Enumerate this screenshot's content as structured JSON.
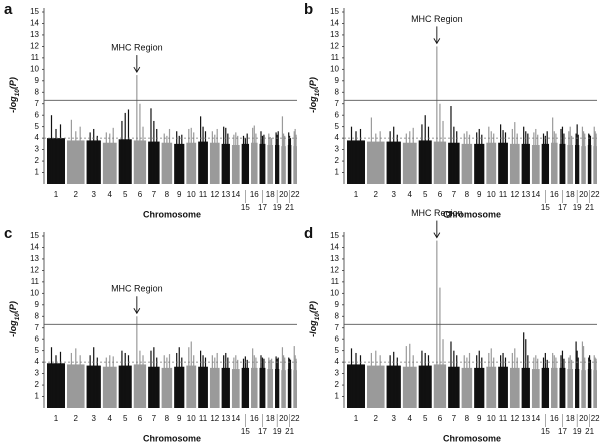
{
  "chart_data": [
    {
      "type": "manhattan",
      "label": "a",
      "x_label": "Chromosome",
      "y_label": [
        "-log",
        "10",
        "(P)"
      ],
      "categories": [
        "1",
        "2",
        "3",
        "4",
        "5",
        "6",
        "7",
        "8",
        "9",
        "10",
        "11",
        "12",
        "13",
        "14",
        "15",
        "16",
        "17",
        "18",
        "19",
        "20",
        "21",
        "22"
      ],
      "colors": [
        "#111111",
        "#9a9a9a"
      ],
      "ylim": [
        0,
        15
      ],
      "yticks": [
        1,
        2,
        3,
        4,
        5,
        6,
        7,
        8,
        9,
        10,
        11,
        12,
        13,
        14,
        15
      ],
      "genome_wide_line": 7.3,
      "suggestive_line": 4,
      "bands": [
        4.0,
        3.8,
        3.8,
        3.6,
        3.9,
        3.8,
        3.7,
        3.6,
        3.5,
        3.6,
        3.7,
        3.6,
        3.5,
        3.4,
        3.5,
        3.6,
        3.5,
        3.4,
        3.4,
        3.3,
        3.4,
        3.3
      ],
      "peaks": [
        [
          6.0,
          4.8,
          5.2
        ],
        [
          5.6,
          4.6,
          5.0
        ],
        [
          4.5,
          4.8,
          4.2
        ],
        [
          4.5,
          4.4,
          4.9
        ],
        [
          5.5,
          6.2,
          6.5
        ],
        [
          9.5,
          7.0,
          5.0
        ],
        [
          6.6,
          5.5,
          4.8
        ],
        [
          4.4,
          4.2,
          4.8
        ],
        [
          4.6,
          4.2,
          4.3
        ],
        [
          4.8,
          4.9,
          4.5
        ],
        [
          5.9,
          5.0,
          4.6
        ],
        [
          4.6,
          4.3,
          4.8
        ],
        [
          5.0,
          4.9,
          4.4
        ],
        [
          4.3,
          4.5,
          4.2
        ],
        [
          4.2,
          4.0,
          4.4
        ],
        [
          4.9,
          5.1,
          4.4
        ],
        [
          4.6,
          4.2,
          4.3
        ],
        [
          4.4,
          4.1,
          4.0
        ],
        [
          4.5,
          4.3,
          4.6
        ],
        [
          5.9,
          4.4,
          4.2
        ],
        [
          4.5,
          4.2,
          4.0
        ],
        [
          4.6,
          4.8,
          4.3
        ]
      ],
      "annotation": {
        "text": "MHC Region",
        "category": "6"
      }
    },
    {
      "type": "manhattan",
      "label": "b",
      "x_label": "Chromosome",
      "y_label": [
        "-log",
        "10",
        "(P)"
      ],
      "categories": [
        "1",
        "2",
        "3",
        "4",
        "5",
        "6",
        "7",
        "8",
        "9",
        "10",
        "11",
        "12",
        "13",
        "14",
        "15",
        "16",
        "17",
        "18",
        "19",
        "20",
        "21",
        "22"
      ],
      "colors": [
        "#111111",
        "#9a9a9a"
      ],
      "ylim": [
        0,
        15
      ],
      "yticks": [
        1,
        2,
        3,
        4,
        5,
        6,
        7,
        8,
        9,
        10,
        11,
        12,
        13,
        14,
        15
      ],
      "genome_wide_line": 7.3,
      "suggestive_line": 4,
      "bands": [
        3.8,
        3.7,
        3.7,
        3.6,
        3.8,
        3.7,
        3.6,
        3.5,
        3.5,
        3.6,
        3.6,
        3.5,
        3.5,
        3.4,
        3.5,
        3.6,
        3.5,
        3.4,
        3.4,
        3.3,
        3.4,
        3.3
      ],
      "peaks": [
        [
          5.0,
          4.6,
          4.8
        ],
        [
          5.8,
          4.4,
          4.6
        ],
        [
          4.6,
          5.0,
          4.3
        ],
        [
          4.4,
          4.6,
          4.9
        ],
        [
          5.2,
          6.0,
          5.0
        ],
        [
          12.0,
          7.0,
          5.5
        ],
        [
          6.8,
          5.0,
          4.6
        ],
        [
          4.4,
          4.6,
          4.3
        ],
        [
          4.5,
          4.8,
          4.3
        ],
        [
          5.0,
          4.6,
          4.4
        ],
        [
          5.2,
          4.7,
          4.5
        ],
        [
          4.8,
          5.4,
          4.4
        ],
        [
          5.0,
          4.6,
          4.4
        ],
        [
          4.5,
          4.8,
          4.3
        ],
        [
          4.4,
          4.2,
          4.6
        ],
        [
          5.8,
          4.6,
          4.4
        ],
        [
          4.8,
          5.0,
          4.4
        ],
        [
          4.6,
          5.0,
          4.2
        ],
        [
          4.4,
          5.2,
          4.3
        ],
        [
          5.0,
          4.6,
          4.4
        ],
        [
          4.4,
          4.3,
          4.2
        ],
        [
          5.0,
          4.6,
          4.4
        ]
      ],
      "annotation": {
        "text": "MHC Region",
        "category": "6"
      }
    },
    {
      "type": "manhattan",
      "label": "c",
      "x_label": "Chromosome",
      "y_label": [
        "-log",
        "10",
        "(P)"
      ],
      "categories": [
        "1",
        "2",
        "3",
        "4",
        "5",
        "6",
        "7",
        "8",
        "9",
        "10",
        "11",
        "12",
        "13",
        "14",
        "15",
        "16",
        "17",
        "18",
        "19",
        "20",
        "21",
        "22"
      ],
      "colors": [
        "#111111",
        "#9a9a9a"
      ],
      "ylim": [
        0,
        15
      ],
      "yticks": [
        1,
        2,
        3,
        4,
        5,
        6,
        7,
        8,
        9,
        10,
        11,
        12,
        13,
        14,
        15
      ],
      "genome_wide_line": 7.3,
      "suggestive_line": 4,
      "bands": [
        3.9,
        3.8,
        3.7,
        3.6,
        3.7,
        3.8,
        3.6,
        3.5,
        3.6,
        3.7,
        3.6,
        3.5,
        3.5,
        3.4,
        3.5,
        3.5,
        3.5,
        3.4,
        3.4,
        3.3,
        3.4,
        3.3
      ],
      "peaks": [
        [
          5.3,
          4.6,
          4.9
        ],
        [
          4.8,
          5.2,
          4.6
        ],
        [
          4.6,
          5.3,
          4.4
        ],
        [
          4.4,
          4.6,
          4.5
        ],
        [
          5.0,
          4.8,
          4.6
        ],
        [
          8.0,
          5.0,
          4.6
        ],
        [
          5.0,
          5.3,
          4.4
        ],
        [
          4.6,
          4.4,
          4.7
        ],
        [
          4.8,
          5.3,
          4.4
        ],
        [
          5.3,
          5.8,
          4.6
        ],
        [
          5.0,
          4.6,
          4.4
        ],
        [
          4.6,
          4.4,
          4.8
        ],
        [
          4.6,
          4.8,
          4.4
        ],
        [
          4.4,
          4.6,
          4.2
        ],
        [
          4.3,
          4.5,
          4.2
        ],
        [
          5.2,
          4.6,
          4.4
        ],
        [
          4.6,
          4.4,
          4.3
        ],
        [
          4.4,
          4.2,
          4.3
        ],
        [
          4.5,
          4.3,
          4.4
        ],
        [
          5.3,
          4.6,
          4.4
        ],
        [
          4.4,
          4.3,
          4.2
        ],
        [
          5.4,
          4.6,
          4.3
        ]
      ],
      "annotation": {
        "text": "MHC Region",
        "category": "6"
      }
    },
    {
      "type": "manhattan",
      "label": "d",
      "x_label": "Chromosome",
      "y_label": [
        "-log",
        "10",
        "(P)"
      ],
      "categories": [
        "1",
        "2",
        "3",
        "4",
        "5",
        "6",
        "7",
        "8",
        "9",
        "10",
        "11",
        "12",
        "13",
        "14",
        "15",
        "16",
        "17",
        "18",
        "19",
        "20",
        "21",
        "22"
      ],
      "colors": [
        "#111111",
        "#9a9a9a"
      ],
      "ylim": [
        0,
        15
      ],
      "yticks": [
        1,
        2,
        3,
        4,
        5,
        6,
        7,
        8,
        9,
        10,
        11,
        12,
        13,
        14,
        15
      ],
      "genome_wide_line": 7.3,
      "suggestive_line": 4,
      "bands": [
        3.8,
        3.7,
        3.7,
        3.6,
        3.7,
        3.8,
        3.6,
        3.5,
        3.5,
        3.6,
        3.6,
        3.5,
        3.5,
        3.4,
        3.5,
        3.5,
        3.5,
        3.4,
        3.4,
        3.3,
        3.4,
        3.3
      ],
      "peaks": [
        [
          5.2,
          4.8,
          4.6
        ],
        [
          4.8,
          5.0,
          4.6
        ],
        [
          4.6,
          4.9,
          4.4
        ],
        [
          5.4,
          5.6,
          4.6
        ],
        [
          5.0,
          4.8,
          4.6
        ],
        [
          14.6,
          10.5,
          6.0
        ],
        [
          5.8,
          5.0,
          4.6
        ],
        [
          4.6,
          4.4,
          4.8
        ],
        [
          4.6,
          5.0,
          4.4
        ],
        [
          4.8,
          5.2,
          4.4
        ],
        [
          4.6,
          4.8,
          4.4
        ],
        [
          4.8,
          5.2,
          4.4
        ],
        [
          6.6,
          6.0,
          4.6
        ],
        [
          4.4,
          4.6,
          4.3
        ],
        [
          4.4,
          4.8,
          4.2
        ],
        [
          4.8,
          4.6,
          4.4
        ],
        [
          4.6,
          5.0,
          4.3
        ],
        [
          4.4,
          4.6,
          4.2
        ],
        [
          5.8,
          5.0,
          4.4
        ],
        [
          5.8,
          5.4,
          4.4
        ],
        [
          4.4,
          4.6,
          4.2
        ],
        [
          4.6,
          4.4,
          4.3
        ]
      ],
      "annotation": {
        "text": "MHC Region",
        "category": "6"
      }
    }
  ]
}
